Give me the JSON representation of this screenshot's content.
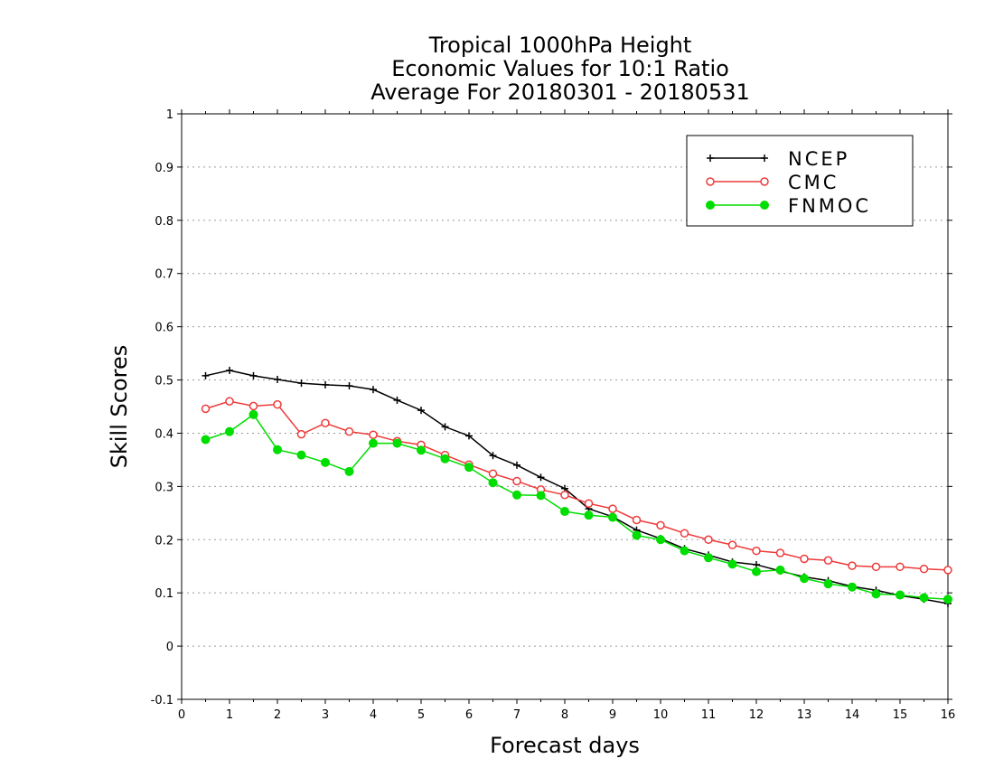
{
  "chart_data": {
    "type": "line",
    "title": [
      "Tropical 1000hPa Height",
      "Economic Values for 10:1 Ratio",
      "Average For 20180301 - 20180531"
    ],
    "xlabel": "Forecast days",
    "ylabel": "Skill Scores",
    "xlim": [
      0,
      16
    ],
    "ylim": [
      -0.1,
      1
    ],
    "xticks": [
      0,
      1,
      2,
      3,
      4,
      5,
      6,
      7,
      8,
      9,
      10,
      11,
      12,
      13,
      14,
      15,
      16
    ],
    "xtick_labels": [
      "0",
      "1",
      "2",
      "3",
      "4",
      "5",
      "6",
      "7",
      "8",
      "9",
      "10",
      "11",
      "12",
      "13",
      "14",
      "15",
      "16"
    ],
    "yticks": [
      -0.1,
      0,
      0.1,
      0.2,
      0.3,
      0.4,
      0.5,
      0.6,
      0.7,
      0.8,
      0.9,
      1
    ],
    "ytick_labels": [
      "-0.1",
      "0",
      "0.1",
      "0.2",
      "0.3",
      "0.4",
      "0.5",
      "0.6",
      "0.7",
      "0.8",
      "0.9",
      "1"
    ],
    "grid": "horizontal dotted",
    "legend_position": "top-right",
    "x": [
      0.5,
      1,
      1.5,
      2,
      2.5,
      3,
      3.5,
      4,
      4.5,
      5,
      5.5,
      6,
      6.5,
      7,
      7.5,
      8,
      8.5,
      9,
      9.5,
      10,
      10.5,
      11,
      11.5,
      12,
      12.5,
      13,
      13.5,
      14,
      14.5,
      15,
      15.5,
      16
    ],
    "series": [
      {
        "name": "NCEP",
        "color": "#000000",
        "marker": "plus",
        "values": [
          0.508,
          0.518,
          0.508,
          0.501,
          0.494,
          0.491,
          0.489,
          0.482,
          0.462,
          0.443,
          0.412,
          0.395,
          0.358,
          0.34,
          0.317,
          0.296,
          0.258,
          0.243,
          0.218,
          0.202,
          0.183,
          0.171,
          0.158,
          0.153,
          0.141,
          0.13,
          0.123,
          0.112,
          0.105,
          0.095,
          0.088,
          0.08
        ]
      },
      {
        "name": "CMC",
        "color": "#ee3a3a",
        "marker": "open-circle",
        "values": [
          0.446,
          0.46,
          0.451,
          0.454,
          0.398,
          0.419,
          0.403,
          0.397,
          0.385,
          0.378,
          0.359,
          0.341,
          0.324,
          0.31,
          0.294,
          0.284,
          0.268,
          0.258,
          0.237,
          0.227,
          0.212,
          0.2,
          0.19,
          0.179,
          0.175,
          0.164,
          0.161,
          0.151,
          0.149,
          0.149,
          0.145,
          0.143
        ]
      },
      {
        "name": "FNMOC",
        "color": "#00dd00",
        "marker": "filled-circle",
        "values": [
          0.388,
          0.403,
          0.435,
          0.369,
          0.359,
          0.345,
          0.328,
          0.381,
          0.381,
          0.368,
          0.352,
          0.336,
          0.307,
          0.284,
          0.283,
          0.253,
          0.246,
          0.242,
          0.208,
          0.2,
          0.179,
          0.166,
          0.154,
          0.14,
          0.143,
          0.127,
          0.117,
          0.111,
          0.098,
          0.096,
          0.091,
          0.088
        ]
      }
    ]
  }
}
